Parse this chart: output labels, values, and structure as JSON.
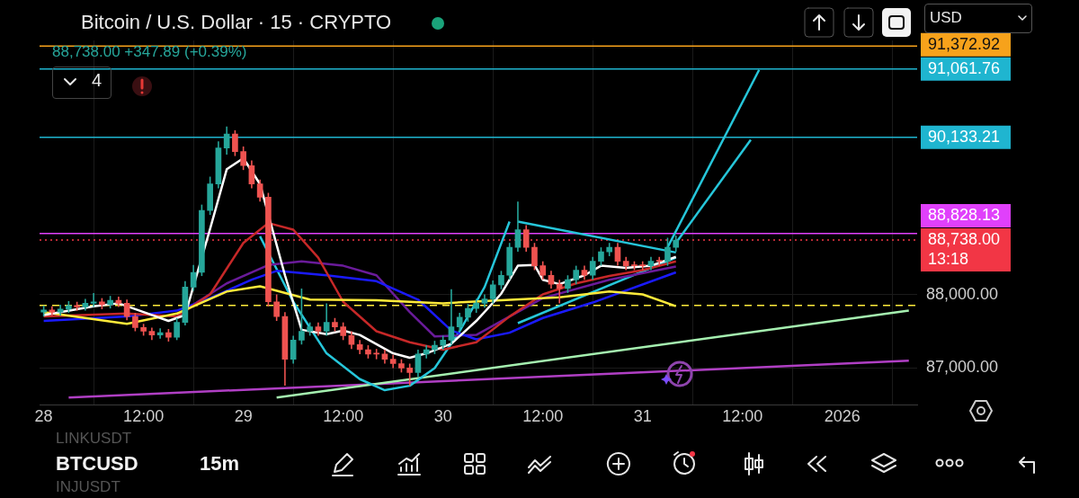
{
  "chart_data": {
    "type": "candlestick",
    "title": "Bitcoin / U.S. Dollar · 15 · CRYPTO",
    "subtitle": "88,738.00 +347.89 (+0.39%)",
    "annotations": [
      "4",
      "USD",
      "BTCUSD",
      "15m",
      "LINKUSDT",
      "INJUSDT",
      "13:18"
    ],
    "x": [
      "2025-12-28T00:00",
      "2025-12-28T01:00",
      "2025-12-28T02:00",
      "2025-12-28T03:00",
      "2025-12-28T04:00",
      "2025-12-28T05:00",
      "2025-12-28T06:00",
      "2025-12-28T07:00",
      "2025-12-28T08:00",
      "2025-12-28T09:00",
      "2025-12-28T10:00",
      "2025-12-28T11:00",
      "2025-12-28T12:00",
      "2025-12-28T13:00",
      "2025-12-28T14:00",
      "2025-12-28T15:00",
      "2025-12-28T16:00",
      "2025-12-28T17:00",
      "2025-12-28T18:00",
      "2025-12-28T19:00",
      "2025-12-28T20:00",
      "2025-12-28T21:00",
      "2025-12-28T22:00",
      "2025-12-28T23:00",
      "2025-12-29T00:00",
      "2025-12-29T01:00",
      "2025-12-29T02:00",
      "2025-12-29T03:00",
      "2025-12-29T04:00",
      "2025-12-29T05:00",
      "2025-12-29T06:00",
      "2025-12-29T07:00",
      "2025-12-29T08:00",
      "2025-12-29T09:00",
      "2025-12-29T10:00",
      "2025-12-29T11:00",
      "2025-12-29T12:00",
      "2025-12-29T13:00",
      "2025-12-29T14:00",
      "2025-12-29T15:00",
      "2025-12-29T16:00",
      "2025-12-29T17:00",
      "2025-12-29T18:00",
      "2025-12-29T19:00",
      "2025-12-29T20:00",
      "2025-12-29T21:00",
      "2025-12-29T22:00",
      "2025-12-29T23:00",
      "2025-12-30T00:00",
      "2025-12-30T01:00",
      "2025-12-30T02:00",
      "2025-12-30T03:00",
      "2025-12-30T04:00",
      "2025-12-30T05:00",
      "2025-12-30T06:00",
      "2025-12-30T07:00",
      "2025-12-30T08:00",
      "2025-12-30T09:00",
      "2025-12-30T10:00",
      "2025-12-30T11:00",
      "2025-12-30T12:00",
      "2025-12-30T13:00",
      "2025-12-30T14:00",
      "2025-12-30T15:00",
      "2025-12-30T16:00",
      "2025-12-30T17:00",
      "2025-12-30T18:00",
      "2025-12-30T19:00",
      "2025-12-30T20:00",
      "2025-12-30T21:00",
      "2025-12-30T22:00",
      "2025-12-30T23:00",
      "2025-12-31T00:00",
      "2025-12-31T01:00",
      "2025-12-31T02:00",
      "2025-12-31T03:00",
      "2025-12-31T04:00"
    ],
    "ohlc": [
      [
        87760,
        87850,
        87700,
        87790
      ],
      [
        87790,
        87840,
        87710,
        87760
      ],
      [
        87760,
        87860,
        87710,
        87800
      ],
      [
        87800,
        87910,
        87750,
        87850
      ],
      [
        87850,
        87900,
        87780,
        87830
      ],
      [
        87830,
        87940,
        87780,
        87880
      ],
      [
        87880,
        88020,
        87830,
        87900
      ],
      [
        87900,
        87950,
        87800,
        87860
      ],
      [
        87860,
        87980,
        87810,
        87920
      ],
      [
        87920,
        87970,
        87830,
        87880
      ],
      [
        87880,
        87930,
        87650,
        87700
      ],
      [
        87700,
        87750,
        87500,
        87550
      ],
      [
        87550,
        87600,
        87440,
        87500
      ],
      [
        87500,
        87550,
        87380,
        87450
      ],
      [
        87450,
        87540,
        87400,
        87480
      ],
      [
        87480,
        87530,
        87360,
        87420
      ],
      [
        87420,
        87680,
        87380,
        87620
      ],
      [
        87620,
        88180,
        87580,
        88100
      ],
      [
        88100,
        88400,
        88050,
        88300
      ],
      [
        88300,
        89220,
        88250,
        89140
      ],
      [
        89140,
        89600,
        89080,
        89500
      ],
      [
        89500,
        90080,
        89440,
        89990
      ],
      [
        89990,
        90280,
        89900,
        90180
      ],
      [
        90180,
        90230,
        89880,
        89940
      ],
      [
        89940,
        90010,
        89690,
        89750
      ],
      [
        89750,
        89820,
        89440,
        89500
      ],
      [
        89500,
        89560,
        89260,
        89320
      ],
      [
        89320,
        89380,
        87840,
        87900
      ],
      [
        87900,
        88000,
        87640,
        87700
      ],
      [
        87700,
        87760,
        86760,
        87120
      ],
      [
        87120,
        87440,
        87060,
        87380
      ],
      [
        87380,
        88080,
        87320,
        87500
      ],
      [
        87500,
        87620,
        87440,
        87560
      ],
      [
        87560,
        87620,
        87440,
        87500
      ],
      [
        87500,
        87880,
        87440,
        87620
      ],
      [
        87620,
        87680,
        87500,
        87560
      ],
      [
        87560,
        87620,
        87380,
        87440
      ],
      [
        87440,
        87500,
        87260,
        87320
      ],
      [
        87320,
        87380,
        87190,
        87250
      ],
      [
        87250,
        87310,
        87130,
        87190
      ],
      [
        87190,
        87260,
        87120,
        87190
      ],
      [
        87190,
        87250,
        87060,
        87120
      ],
      [
        87120,
        87180,
        87000,
        87060
      ],
      [
        87060,
        87120,
        86940,
        87000
      ],
      [
        87000,
        87060,
        86760,
        86940
      ],
      [
        86940,
        87250,
        86880,
        87190
      ],
      [
        87190,
        87310,
        87130,
        87250
      ],
      [
        87250,
        87370,
        87190,
        87310
      ],
      [
        87310,
        87440,
        87250,
        87380
      ],
      [
        87380,
        88070,
        87320,
        87560
      ],
      [
        87560,
        87750,
        87500,
        87690
      ],
      [
        87690,
        87870,
        87630,
        87810
      ],
      [
        87810,
        87940,
        87750,
        87880
      ],
      [
        87880,
        88000,
        87820,
        87940
      ],
      [
        87940,
        88190,
        87880,
        88130
      ],
      [
        88130,
        88320,
        88070,
        88260
      ],
      [
        88260,
        88700,
        88200,
        88640
      ],
      [
        88640,
        89260,
        88580,
        88880
      ],
      [
        88880,
        88940,
        88580,
        88640
      ],
      [
        88640,
        88700,
        88330,
        88390
      ],
      [
        88390,
        88450,
        88200,
        88260
      ],
      [
        88260,
        88320,
        88080,
        88140
      ],
      [
        88140,
        88200,
        87880,
        88080
      ],
      [
        88080,
        88260,
        88020,
        88200
      ],
      [
        88200,
        88390,
        88140,
        88330
      ],
      [
        88330,
        88390,
        88200,
        88260
      ],
      [
        88260,
        88510,
        88200,
        88450
      ],
      [
        88450,
        88640,
        88390,
        88580
      ],
      [
        88580,
        88700,
        88520,
        88640
      ],
      [
        88640,
        88700,
        88390,
        88450
      ],
      [
        88450,
        88510,
        88330,
        88390
      ],
      [
        88390,
        88450,
        88330,
        88390
      ],
      [
        88390,
        88450,
        88330,
        88390
      ],
      [
        88390,
        88510,
        88330,
        88450
      ],
      [
        88450,
        88510,
        88390,
        88450
      ],
      [
        88450,
        88770,
        88390,
        88640
      ],
      [
        88640,
        88800,
        88580,
        88738
      ]
    ],
    "colors": [
      "#26a69a",
      "#ef5350",
      "#26a69a",
      "#26a69a",
      "#ef5350",
      "#26a69a",
      "#26a69a",
      "#ef5350",
      "#26a69a",
      "#ef5350",
      "#ef5350",
      "#ef5350",
      "#ef5350",
      "#ef5350",
      "#26a69a",
      "#ef5350",
      "#26a69a",
      "#26a69a",
      "#26a69a",
      "#26a69a",
      "#26a69a",
      "#26a69a",
      "#26a69a",
      "#ef5350",
      "#ef5350",
      "#ef5350",
      "#ef5350",
      "#ef5350",
      "#ef5350",
      "#ef5350",
      "#26a69a",
      "#26a69a",
      "#26a69a",
      "#ef5350",
      "#26a69a",
      "#ef5350",
      "#ef5350",
      "#ef5350",
      "#ef5350",
      "#ef5350",
      "#ef5350",
      "#ef5350",
      "#ef5350",
      "#ef5350",
      "#ef5350",
      "#26a69a",
      "#26a69a",
      "#26a69a",
      "#26a69a",
      "#26a69a",
      "#26a69a",
      "#26a69a",
      "#26a69a",
      "#26a69a",
      "#26a69a",
      "#26a69a",
      "#26a69a",
      "#26a69a",
      "#ef5350",
      "#ef5350",
      "#ef5350",
      "#ef5350",
      "#ef5350",
      "#26a69a",
      "#26a69a",
      "#ef5350",
      "#26a69a",
      "#26a69a",
      "#26a69a",
      "#ef5350",
      "#ef5350",
      "#ef5350",
      "#ef5350",
      "#26a69a",
      "#ef5350",
      "#26a69a",
      "#26a69a"
    ],
    "series": [
      {
        "type": "line",
        "color": "#ffffff",
        "x": [
          "2025-12-28T00:00",
          "2025-12-28T06:00",
          "2025-12-28T09:00",
          "2025-12-28T11:00",
          "2025-12-28T15:00",
          "2025-12-28T17:00",
          "2025-12-28T20:00",
          "2025-12-28T22:00",
          "2025-12-29T00:00",
          "2025-12-29T02:00",
          "2025-12-29T05:00",
          "2025-12-29T07:00",
          "2025-12-29T10:00",
          "2025-12-29T12:00",
          "2025-12-29T14:00",
          "2025-12-29T18:00",
          "2025-12-29T20:00",
          "2025-12-29T22:00",
          "2025-12-30T01:00",
          "2025-12-30T04:00",
          "2025-12-30T07:00",
          "2025-12-30T09:00",
          "2025-12-30T11:00",
          "2025-12-30T12:00",
          "2025-12-30T14:00",
          "2025-12-30T17:00",
          "2025-12-30T19:00",
          "2025-12-30T22:00",
          "2025-12-31T01:00",
          "2025-12-31T04:00"
        ],
        "values": [
          87720,
          87840,
          87880,
          87800,
          87640,
          87720,
          88890,
          89700,
          89850,
          89500,
          88260,
          87520,
          87460,
          87510,
          87450,
          87200,
          87140,
          87200,
          87330,
          87640,
          88010,
          88390,
          88400,
          88200,
          88140,
          88260,
          88390,
          88360,
          88390,
          88510
        ]
      },
      {
        "type": "line",
        "color": "#ffeb3b",
        "x": [
          "2025-12-28T00:00",
          "2025-12-28T10:00",
          "2025-12-28T16:00",
          "2025-12-28T22:00",
          "2025-12-29T02:00",
          "2025-12-29T08:00",
          "2025-12-29T16:00",
          "2025-12-30T00:00",
          "2025-12-30T07:00",
          "2025-12-30T14:00",
          "2025-12-30T20:00",
          "2025-12-31T00:00",
          "2025-12-31T04:00"
        ],
        "values": [
          87760,
          87600,
          87740,
          88040,
          88110,
          87930,
          87920,
          87880,
          87920,
          87960,
          88040,
          88000,
          87840
        ]
      },
      {
        "type": "line",
        "color": "#c62828",
        "x": [
          "2025-12-28T00:00",
          "2025-12-28T10:00",
          "2025-12-28T16:00",
          "2025-12-28T20:00",
          "2025-12-29T00:00",
          "2025-12-29T03:00",
          "2025-12-29T06:00",
          "2025-12-29T09:00",
          "2025-12-29T12:00",
          "2025-12-29T16:00",
          "2025-12-29T20:00",
          "2025-12-30T00:00",
          "2025-12-30T04:00",
          "2025-12-30T08:00",
          "2025-12-30T12:00",
          "2025-12-30T16:00",
          "2025-12-30T20:00",
          "2025-12-31T00:00",
          "2025-12-31T04:00"
        ],
        "values": [
          87700,
          87740,
          87700,
          88000,
          88700,
          88970,
          88880,
          88500,
          87900,
          87500,
          87350,
          87250,
          87350,
          87700,
          88000,
          88150,
          88250,
          88330,
          88450
        ]
      },
      {
        "type": "line",
        "color": "#1a1aff",
        "x": [
          "2025-12-28T00:00",
          "2025-12-28T10:00",
          "2025-12-28T16:00",
          "2025-12-28T20:00",
          "2025-12-29T01:00",
          "2025-12-29T04:00",
          "2025-12-29T10:00",
          "2025-12-29T16:00",
          "2025-12-29T21:00",
          "2025-12-30T01:00",
          "2025-12-30T04:00",
          "2025-12-30T08:00",
          "2025-12-30T12:00",
          "2025-12-30T18:00",
          "2025-12-31T04:00"
        ],
        "values": [
          87640,
          87700,
          87780,
          87950,
          88200,
          88320,
          88260,
          88180,
          87930,
          87510,
          87390,
          87480,
          87680,
          87890,
          88300
        ]
      },
      {
        "type": "line",
        "color": "#6a1b9a",
        "x": [
          "2025-12-28T16:00",
          "2025-12-28T22:00",
          "2025-12-29T03:00",
          "2025-12-29T07:00",
          "2025-12-29T12:00",
          "2025-12-29T16:00",
          "2025-12-29T20:00",
          "2025-12-29T23:00",
          "2025-12-30T04:00",
          "2025-12-30T12:00",
          "2025-12-30T20:00",
          "2025-12-31T04:00"
        ],
        "values": [
          87720,
          88150,
          88400,
          88450,
          88390,
          88260,
          87760,
          87430,
          87450,
          87950,
          88200,
          88380
        ]
      },
      {
        "type": "line",
        "color": "#26c6da",
        "x": [
          "2025-12-29T02:00",
          "2025-12-29T06:00",
          "2025-12-29T10:00",
          "2025-12-29T14:00",
          "2025-12-29T17:00",
          "2025-12-29T20:00",
          "2025-12-29T23:00",
          "2025-12-30T02:00",
          "2025-12-30T05:00",
          "2025-12-30T08:00"
        ],
        "values": [
          88790,
          87900,
          87200,
          86850,
          86700,
          86760,
          87000,
          87500,
          88100,
          88990
        ]
      },
      {
        "type": "line",
        "color": "#26c6da",
        "x": [
          "2025-12-30T09:00",
          "2025-12-31T04:00"
        ],
        "values": [
          88990,
          88570
        ]
      },
      {
        "type": "line",
        "color": "#26c6da",
        "x": [
          "2025-12-30T09:00",
          "2025-12-31T04:00"
        ],
        "values": [
          87610,
          88500
        ]
      },
      {
        "type": "line",
        "color": "#26c6da",
        "x": [
          "2025-12-31T03:00",
          "2025-12-31T14:00"
        ],
        "values": [
          88640,
          91050
        ]
      },
      {
        "type": "line",
        "color": "#26c6da",
        "x": [
          "2025-12-31T04:00",
          "2025-12-31T13:00"
        ],
        "values": [
          88700,
          90100
        ]
      },
      {
        "type": "line",
        "color": "#a5f0b0",
        "x": [
          "2025-12-29T04:00",
          "2026-01-01T08:00"
        ],
        "values": [
          86600,
          87780
        ]
      },
      {
        "type": "line",
        "color": "#b03fc4",
        "x": [
          "2025-12-28T03:00",
          "2026-01-01T08:00"
        ],
        "values": [
          86600,
          87100
        ]
      }
    ],
    "ref_lines": [
      {
        "axis": "y",
        "value": 91372.92,
        "label": "91,372.92",
        "color": "#f7a21b",
        "line_style": "solid"
      },
      {
        "axis": "y",
        "value": 91061.76,
        "label": "91,061.76",
        "color": "#1fb5d0",
        "line_style": "solid"
      },
      {
        "axis": "y",
        "value": 90133.21,
        "label": "90,133.21",
        "color": "#1fb5d0",
        "line_style": "solid"
      },
      {
        "axis": "y",
        "value": 88828.13,
        "label": "88,828.13",
        "color": "#e040fb",
        "line_style": "solid"
      },
      {
        "axis": "y",
        "value": 87850,
        "color": "#ffeb3b",
        "line_style": "dashed"
      },
      {
        "axis": "y",
        "value": 88738,
        "label": "88,738.00",
        "color": "#f23645",
        "line_style": "dotted"
      }
    ],
    "xlim": [
      "2025-12-27T23:30",
      "2026-01-01T09:00"
    ],
    "xticks": [
      {
        "value": "2025-12-28",
        "label": "28"
      },
      {
        "value": "2025-12-28T12:00",
        "label": "12:00"
      },
      {
        "value": "2025-12-29",
        "label": "29"
      },
      {
        "value": "2025-12-29T12:00",
        "label": "12:00"
      },
      {
        "value": "2025-12-30",
        "label": "30"
      },
      {
        "value": "2025-12-30T12:00",
        "label": "12:00"
      },
      {
        "value": "2025-12-31",
        "label": "31"
      },
      {
        "value": "2025-12-31T12:00",
        "label": "12:00"
      },
      {
        "value": "2026-01-01",
        "label": "2026"
      }
    ],
    "ylim": [
      86500,
      91450
    ],
    "yticks": [
      {
        "value": 87000,
        "label": "87,000.00"
      },
      {
        "value": 88000,
        "label": "88,000.00"
      }
    ],
    "grid": true,
    "legend": false
  }
}
